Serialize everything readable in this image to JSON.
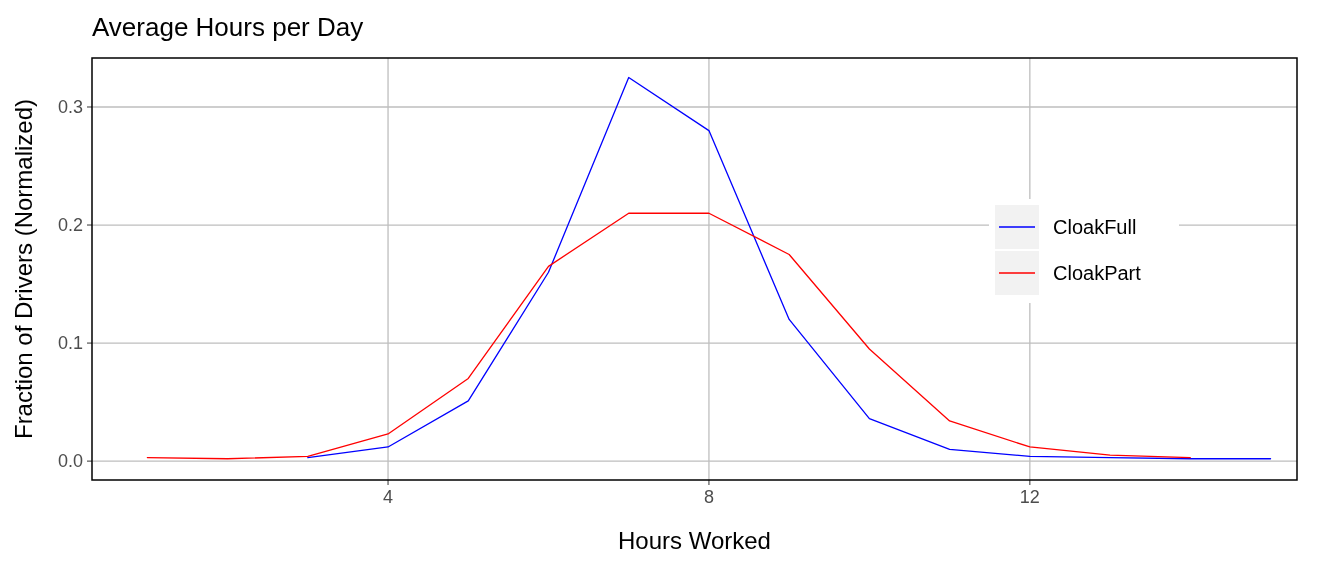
{
  "chart_data": {
    "type": "line",
    "title": "Average Hours per Day",
    "xlabel": "Hours Worked",
    "ylabel": "Fraction of Drivers (Normalized)",
    "xlim": [
      0.31,
      15.33
    ],
    "xticks": [
      4,
      8,
      12
    ],
    "ylim": [
      -0.016,
      0.3415
    ],
    "yticks": [
      {
        "value": 0,
        "label": "0.0"
      },
      0.1,
      0.2,
      0.3
    ],
    "grid": true,
    "legend": "right",
    "marker": "none",
    "line_style": "solid",
    "series": [
      {
        "name": "CloakFull",
        "color": "#0000ff",
        "x": [
          3,
          4,
          5,
          6,
          7,
          8,
          9,
          10,
          11,
          12,
          13,
          14,
          15
        ],
        "values": [
          0.003,
          0.012,
          0.051,
          0.16,
          0.325,
          0.28,
          0.12,
          0.036,
          0.01,
          0.004,
          0.003,
          0.002,
          0.002
        ]
      },
      {
        "name": "CloakPart",
        "color": "#ff0000",
        "x": [
          1,
          2,
          3,
          4,
          5,
          6,
          7,
          8,
          9,
          10,
          11,
          12,
          13,
          14
        ],
        "values": [
          0.003,
          0.002,
          0.004,
          0.023,
          0.07,
          0.165,
          0.21,
          0.21,
          0.175,
          0.095,
          0.034,
          0.012,
          0.005,
          0.003
        ]
      }
    ]
  }
}
